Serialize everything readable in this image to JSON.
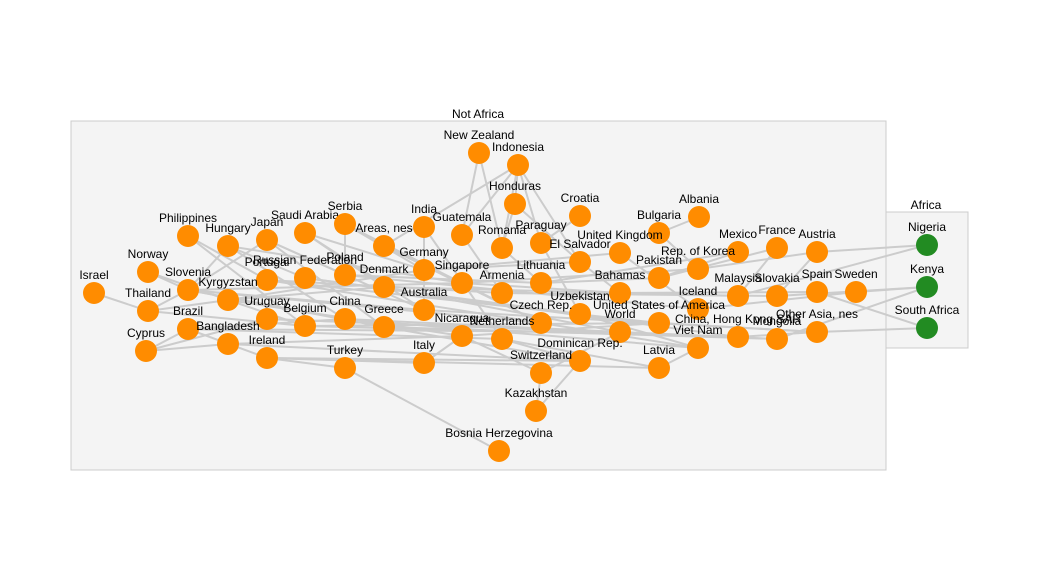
{
  "groups": {
    "not_africa": {
      "label": "Not Africa"
    },
    "africa": {
      "label": "Africa"
    }
  },
  "colors": {
    "not_africa_node": "#ff8c00",
    "africa_node": "#228b22",
    "edge": "#cccccc",
    "group_fill": "#f4f4f4"
  },
  "nodes": [
    {
      "id": "new-zealand",
      "label": "New Zealand",
      "group": "not_africa"
    },
    {
      "id": "indonesia",
      "label": "Indonesia",
      "group": "not_africa"
    },
    {
      "id": "honduras",
      "label": "Honduras",
      "group": "not_africa"
    },
    {
      "id": "croatia",
      "label": "Croatia",
      "group": "not_africa"
    },
    {
      "id": "albania",
      "label": "Albania",
      "group": "not_africa"
    },
    {
      "id": "philippines",
      "label": "Philippines",
      "group": "not_africa"
    },
    {
      "id": "hungary",
      "label": "Hungary",
      "group": "not_africa"
    },
    {
      "id": "japan",
      "label": "Japan",
      "group": "not_africa"
    },
    {
      "id": "saudi-arabia",
      "label": "Saudi Arabia",
      "group": "not_africa"
    },
    {
      "id": "serbia",
      "label": "Serbia",
      "group": "not_africa"
    },
    {
      "id": "areas-nes",
      "label": "Areas, nes",
      "group": "not_africa"
    },
    {
      "id": "india",
      "label": "India",
      "group": "not_africa"
    },
    {
      "id": "guatemala",
      "label": "Guatemala",
      "group": "not_africa"
    },
    {
      "id": "romania",
      "label": "Romania",
      "group": "not_africa"
    },
    {
      "id": "paraguay",
      "label": "Paraguay",
      "group": "not_africa"
    },
    {
      "id": "bulgaria",
      "label": "Bulgaria",
      "group": "not_africa"
    },
    {
      "id": "el-salvador",
      "label": "El Salvador",
      "group": "not_africa"
    },
    {
      "id": "united-kingdom",
      "label": "United Kingdom",
      "group": "not_africa"
    },
    {
      "id": "mexico",
      "label": "Mexico",
      "group": "not_africa"
    },
    {
      "id": "france",
      "label": "France",
      "group": "not_africa"
    },
    {
      "id": "austria",
      "label": "Austria",
      "group": "not_africa"
    },
    {
      "id": "norway",
      "label": "Norway",
      "group": "not_africa"
    },
    {
      "id": "slovenia",
      "label": "Slovenia",
      "group": "not_africa"
    },
    {
      "id": "portugal",
      "label": "Portugal",
      "group": "not_africa"
    },
    {
      "id": "russian-federation",
      "label": "Russian Federation",
      "group": "not_africa"
    },
    {
      "id": "poland",
      "label": "Poland",
      "group": "not_africa"
    },
    {
      "id": "denmark",
      "label": "Denmark",
      "group": "not_africa"
    },
    {
      "id": "germany",
      "label": "Germany",
      "group": "not_africa"
    },
    {
      "id": "singapore",
      "label": "Singapore",
      "group": "not_africa"
    },
    {
      "id": "lithuania",
      "label": "Lithuania",
      "group": "not_africa"
    },
    {
      "id": "rep-of-korea",
      "label": "Rep. of Korea",
      "group": "not_africa"
    },
    {
      "id": "pakistan",
      "label": "Pakistan",
      "group": "not_africa"
    },
    {
      "id": "israel",
      "label": "Israel",
      "group": "not_africa"
    },
    {
      "id": "thailand",
      "label": "Thailand",
      "group": "not_africa"
    },
    {
      "id": "kyrgyzstan",
      "label": "Kyrgyzstan",
      "group": "not_africa"
    },
    {
      "id": "armenia",
      "label": "Armenia",
      "group": "not_africa"
    },
    {
      "id": "bahamas",
      "label": "Bahamas",
      "group": "not_africa"
    },
    {
      "id": "iceland",
      "label": "Iceland",
      "group": "not_africa"
    },
    {
      "id": "malaysia",
      "label": "Malaysia",
      "group": "not_africa"
    },
    {
      "id": "slovakia",
      "label": "Slovakia",
      "group": "not_africa"
    },
    {
      "id": "spain",
      "label": "Spain",
      "group": "not_africa"
    },
    {
      "id": "sweden",
      "label": "Sweden",
      "group": "not_africa"
    },
    {
      "id": "brazil",
      "label": "Brazil",
      "group": "not_africa"
    },
    {
      "id": "uruguay",
      "label": "Uruguay",
      "group": "not_africa"
    },
    {
      "id": "belgium",
      "label": "Belgium",
      "group": "not_africa"
    },
    {
      "id": "china",
      "label": "China",
      "group": "not_africa"
    },
    {
      "id": "greece",
      "label": "Greece",
      "group": "not_africa"
    },
    {
      "id": "australia",
      "label": "Australia",
      "group": "not_africa"
    },
    {
      "id": "uzbekistan",
      "label": "Uzbekistan",
      "group": "not_africa"
    },
    {
      "id": "czech-rep",
      "label": "Czech Rep.",
      "group": "not_africa"
    },
    {
      "id": "usa",
      "label": "United States of America",
      "group": "not_africa"
    },
    {
      "id": "world",
      "label": "World",
      "group": "not_africa"
    },
    {
      "id": "china-hk",
      "label": "China, Hong Kong SAR",
      "group": "not_africa"
    },
    {
      "id": "mongolia",
      "label": "Mongolia",
      "group": "not_africa"
    },
    {
      "id": "other-asia-nes",
      "label": "Other Asia, nes",
      "group": "not_africa"
    },
    {
      "id": "viet-nam",
      "label": "Viet Nam",
      "group": "not_africa"
    },
    {
      "id": "cyprus",
      "label": "Cyprus",
      "group": "not_africa"
    },
    {
      "id": "bangladesh",
      "label": "Bangladesh",
      "group": "not_africa"
    },
    {
      "id": "ireland",
      "label": "Ireland",
      "group": "not_africa"
    },
    {
      "id": "nicaragua",
      "label": "Nicaragua",
      "group": "not_africa"
    },
    {
      "id": "netherlands",
      "label": "Netherlands",
      "group": "not_africa"
    },
    {
      "id": "dominican-rep",
      "label": "Dominican Rep.",
      "group": "not_africa"
    },
    {
      "id": "turkey",
      "label": "Turkey",
      "group": "not_africa"
    },
    {
      "id": "italy",
      "label": "Italy",
      "group": "not_africa"
    },
    {
      "id": "switzerland",
      "label": "Switzerland",
      "group": "not_africa"
    },
    {
      "id": "latvia",
      "label": "Latvia",
      "group": "not_africa"
    },
    {
      "id": "kazakhstan",
      "label": "Kazakhstan",
      "group": "not_africa"
    },
    {
      "id": "bosnia-herzegovina",
      "label": "Bosnia Herzegovina",
      "group": "not_africa"
    },
    {
      "id": "nigeria",
      "label": "Nigeria",
      "group": "africa"
    },
    {
      "id": "kenya",
      "label": "Kenya",
      "group": "africa"
    },
    {
      "id": "south-africa",
      "label": "South Africa",
      "group": "africa"
    }
  ],
  "edges": [
    [
      "israel",
      "thailand"
    ],
    [
      "norway",
      "slovenia"
    ],
    [
      "thailand",
      "kyrgyzstan"
    ],
    [
      "cyprus",
      "brazil"
    ],
    [
      "cyprus",
      "uruguay"
    ],
    [
      "new-zealand",
      "guatemala"
    ],
    [
      "new-zealand",
      "romania"
    ],
    [
      "indonesia",
      "guatemala"
    ],
    [
      "indonesia",
      "paraguay"
    ],
    [
      "indonesia",
      "romania"
    ],
    [
      "indonesia",
      "el-salvador"
    ],
    [
      "indonesia",
      "areas-nes"
    ],
    [
      "indonesia",
      "honduras"
    ],
    [
      "honduras",
      "romania"
    ],
    [
      "honduras",
      "el-salvador"
    ],
    [
      "croatia",
      "paraguay"
    ],
    [
      "albania",
      "bulgaria"
    ],
    [
      "philippines",
      "portugal"
    ],
    [
      "hungary",
      "russian-federation"
    ],
    [
      "japan",
      "poland"
    ],
    [
      "saudi-arabia",
      "denmark"
    ],
    [
      "serbia",
      "germany"
    ],
    [
      "serbia",
      "poland"
    ],
    [
      "areas-nes",
      "singapore"
    ],
    [
      "india",
      "australia"
    ],
    [
      "guatemala",
      "armenia"
    ],
    [
      "romania",
      "lithuania"
    ],
    [
      "paraguay",
      "uzbekistan"
    ],
    [
      "el-salvador",
      "bahamas"
    ],
    [
      "bulgaria",
      "rep-of-korea"
    ],
    [
      "united-kingdom",
      "iceland"
    ],
    [
      "mexico",
      "pakistan"
    ],
    [
      "france",
      "malaysia"
    ],
    [
      "austria",
      "slovakia"
    ],
    [
      "slovenia",
      "china"
    ],
    [
      "slovenia",
      "greece"
    ],
    [
      "slovenia",
      "australia"
    ],
    [
      "slovenia",
      "czech-rep"
    ],
    [
      "slovenia",
      "singapore"
    ],
    [
      "kyrgyzstan",
      "belgium"
    ],
    [
      "kyrgyzstan",
      "nicaragua"
    ],
    [
      "brazil",
      "ireland"
    ],
    [
      "brazil",
      "netherlands"
    ],
    [
      "brazil",
      "world"
    ],
    [
      "portugal",
      "usa"
    ],
    [
      "portugal",
      "czech-rep"
    ],
    [
      "russian-federation",
      "uzbekistan"
    ],
    [
      "russian-federation",
      "china-hk"
    ],
    [
      "poland",
      "lithuania"
    ],
    [
      "poland",
      "iceland"
    ],
    [
      "denmark",
      "world"
    ],
    [
      "denmark",
      "malaysia"
    ],
    [
      "germany",
      "el-salvador"
    ],
    [
      "germany",
      "united-kingdom"
    ],
    [
      "singapore",
      "bahamas"
    ],
    [
      "singapore",
      "rep-of-korea"
    ],
    [
      "lithuania",
      "pakistan"
    ],
    [
      "lithuania",
      "mexico"
    ],
    [
      "rep-of-korea",
      "austria"
    ],
    [
      "pakistan",
      "france"
    ],
    [
      "armenia",
      "slovakia"
    ],
    [
      "bahamas",
      "spain"
    ],
    [
      "iceland",
      "sweden"
    ],
    [
      "malaysia",
      "nigeria"
    ],
    [
      "slovakia",
      "kenya"
    ],
    [
      "spain",
      "south-africa"
    ],
    [
      "sweden",
      "kenya"
    ],
    [
      "austria",
      "nigeria"
    ],
    [
      "other-asia-nes",
      "south-africa"
    ],
    [
      "mongolia",
      "kenya"
    ],
    [
      "uruguay",
      "china-hk"
    ],
    [
      "belgium",
      "usa"
    ],
    [
      "china",
      "world"
    ],
    [
      "greece",
      "mongolia"
    ],
    [
      "australia",
      "other-asia-nes"
    ],
    [
      "uzbekistan",
      "viet-nam"
    ],
    [
      "czech-rep",
      "viet-nam"
    ],
    [
      "usa",
      "other-asia-nes"
    ],
    [
      "world",
      "mongolia"
    ],
    [
      "china-hk",
      "other-asia-nes"
    ],
    [
      "bangladesh",
      "dominican-rep"
    ],
    [
      "bangladesh",
      "nicaragua"
    ],
    [
      "ireland",
      "turkey"
    ],
    [
      "ireland",
      "italy"
    ],
    [
      "ireland",
      "latvia"
    ],
    [
      "ireland",
      "dominican-rep"
    ],
    [
      "turkey",
      "bosnia-herzegovina"
    ],
    [
      "italy",
      "nicaragua"
    ],
    [
      "nicaragua",
      "switzerland"
    ],
    [
      "netherlands",
      "dominican-rep"
    ],
    [
      "netherlands",
      "latvia"
    ],
    [
      "dominican-rep",
      "kazakhstan"
    ],
    [
      "switzerland",
      "kazakhstan"
    ],
    [
      "switzerland",
      "world"
    ],
    [
      "latvia",
      "viet-nam"
    ],
    [
      "hungary",
      "china"
    ],
    [
      "japan",
      "greece"
    ],
    [
      "saudi-arabia",
      "australia"
    ],
    [
      "areas-nes",
      "czech-rep"
    ],
    [
      "india",
      "netherlands"
    ],
    [
      "philippines",
      "belgium"
    ],
    [
      "japan",
      "australia"
    ],
    [
      "serbia",
      "czech-rep"
    ],
    [
      "hungary",
      "singapore"
    ],
    [
      "saudi-arabia",
      "germany"
    ],
    [
      "uruguay",
      "world"
    ],
    [
      "belgium",
      "china-hk"
    ],
    [
      "china",
      "viet-nam"
    ],
    [
      "greece",
      "dominican-rep"
    ],
    [
      "nicaragua",
      "usa"
    ],
    [
      "kyrgyzstan",
      "germany"
    ],
    [
      "kyrgyzstan",
      "denmark"
    ],
    [
      "thailand",
      "belgium"
    ],
    [
      "brazil",
      "china"
    ],
    [
      "portugal",
      "armenia"
    ],
    [
      "slovenia",
      "japan"
    ],
    [
      "slovenia",
      "hungary"
    ],
    [
      "norway",
      "kyrgyzstan"
    ],
    [
      "thailand",
      "slovenia"
    ],
    [
      "cyprus",
      "bangladesh"
    ]
  ]
}
